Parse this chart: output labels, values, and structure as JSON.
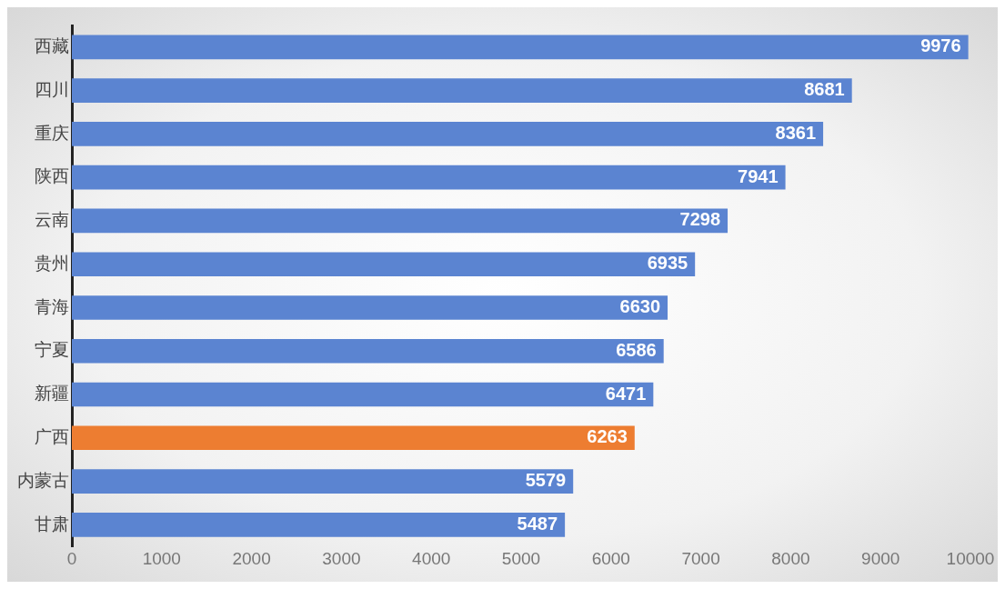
{
  "chart_data": {
    "type": "bar",
    "orientation": "horizontal",
    "categories": [
      "西藏",
      "四川",
      "重庆",
      "陕西",
      "云南",
      "贵州",
      "青海",
      "宁夏",
      "新疆",
      "广西",
      "内蒙古",
      "甘肃"
    ],
    "values": [
      9976,
      8681,
      8361,
      7941,
      7298,
      6935,
      6630,
      6586,
      6471,
      6263,
      5579,
      5487
    ],
    "colors": [
      "#5b84d1",
      "#5b84d1",
      "#5b84d1",
      "#5b84d1",
      "#5b84d1",
      "#5b84d1",
      "#5b84d1",
      "#5b84d1",
      "#5b84d1",
      "#ed7d31",
      "#5b84d1",
      "#5b84d1"
    ],
    "xlim": [
      0,
      10000
    ],
    "xticks": [
      0,
      1000,
      2000,
      3000,
      4000,
      5000,
      6000,
      7000,
      8000,
      9000,
      10000
    ],
    "grid": false,
    "legend": false,
    "data_labels": true
  }
}
